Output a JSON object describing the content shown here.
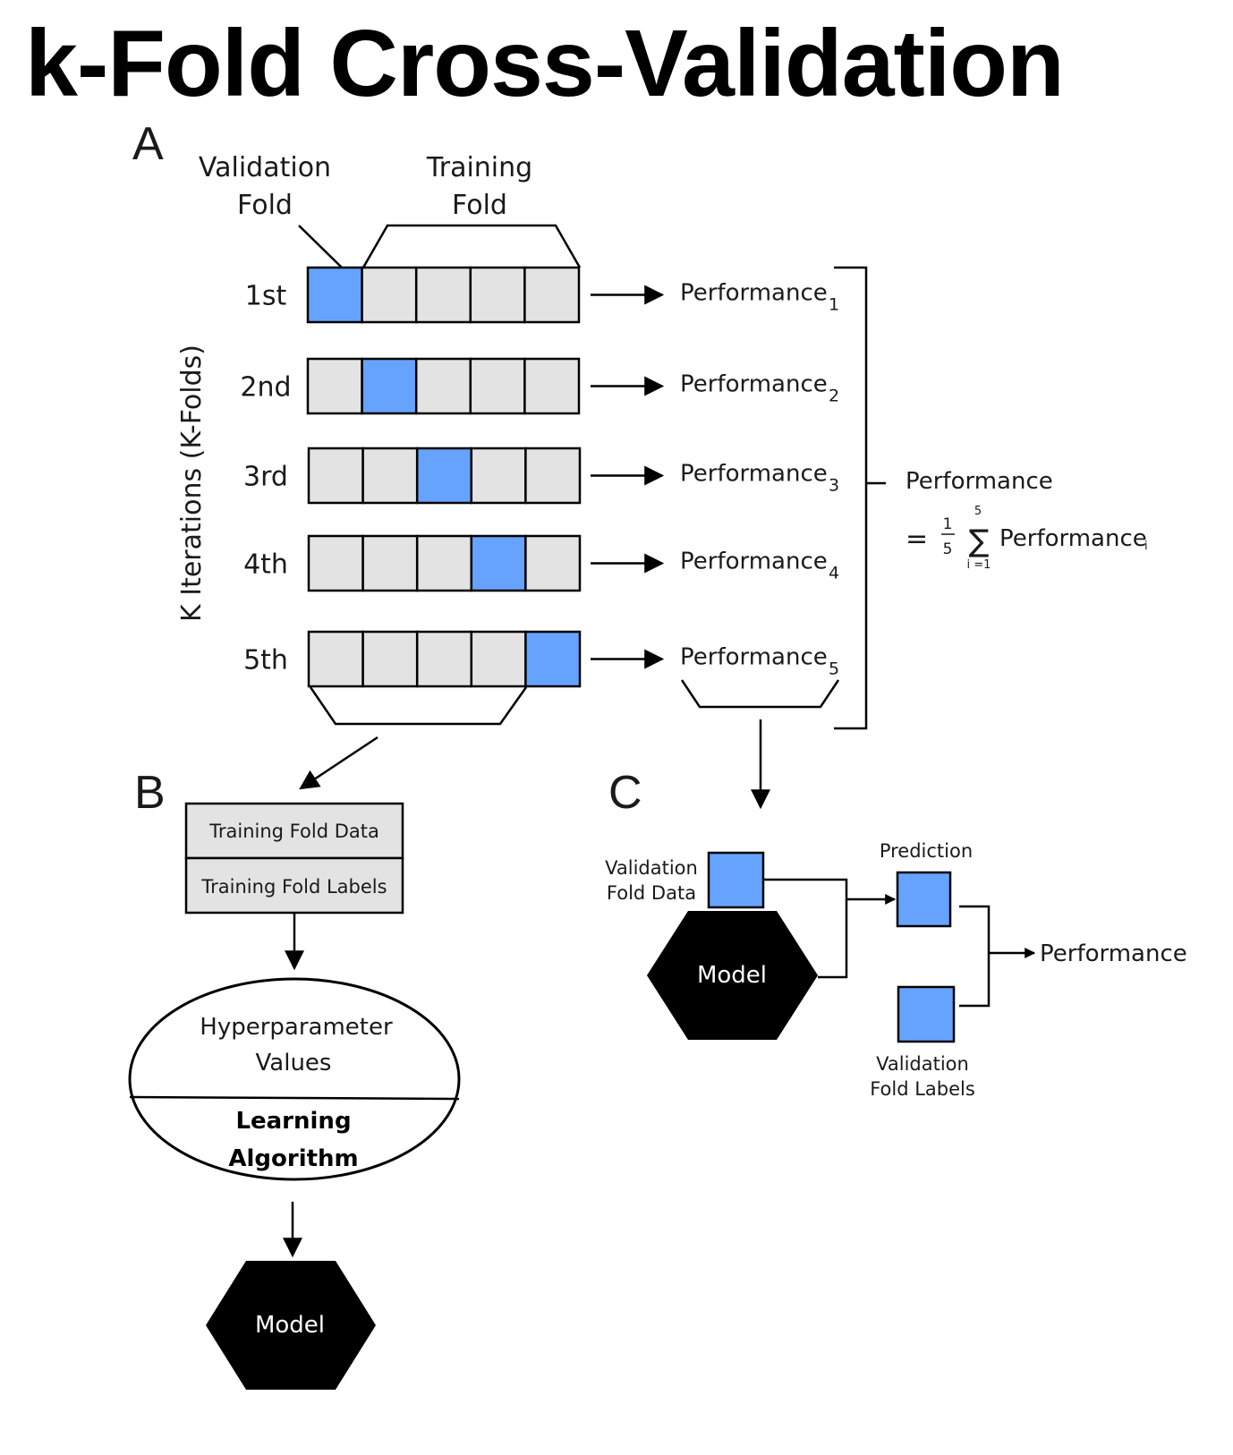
{
  "title": "k-Fold Cross-Validation",
  "panels": {
    "a": "A",
    "b": "B",
    "c": "C"
  },
  "colors": {
    "validation_fold": "#66a3ff",
    "training_fold": "#e3e3e3",
    "model": "#000000"
  },
  "fold_labels": {
    "validation": [
      "Validation",
      "Fold"
    ],
    "training": [
      "Training",
      "Fold"
    ]
  },
  "k_axis_label": "K Iterations (K-Folds)",
  "iterations": [
    {
      "label": "1st",
      "validation_index": 0,
      "performance": "Performance",
      "subscript": "1"
    },
    {
      "label": "2nd",
      "validation_index": 1,
      "performance": "Performance",
      "subscript": "2"
    },
    {
      "label": "3rd",
      "validation_index": 2,
      "performance": "Performance",
      "subscript": "3"
    },
    {
      "label": "4th",
      "validation_index": 3,
      "performance": "Performance",
      "subscript": "4"
    },
    {
      "label": "5th",
      "validation_index": 4,
      "performance": "Performance",
      "subscript": "5"
    }
  ],
  "formula": {
    "label": "Performance",
    "equals": "=",
    "numerator": "1",
    "denominator": "5",
    "sigma": "∑",
    "upper": "5",
    "lower": "i =1",
    "term": "Performance",
    "term_sub": "i"
  },
  "panel_b": {
    "data": "Training Fold Data",
    "labels": "Training Fold Labels",
    "ellipse_top": [
      "Hyperparameter",
      "Values"
    ],
    "ellipse_bottom": [
      "Learning",
      "Algorithm"
    ],
    "model": "Model"
  },
  "panel_c": {
    "validation_data": [
      "Validation",
      "Fold Data"
    ],
    "model": "Model",
    "prediction": "Prediction",
    "validation_labels": [
      "Validation",
      "Fold Labels"
    ],
    "performance": "Performance"
  }
}
